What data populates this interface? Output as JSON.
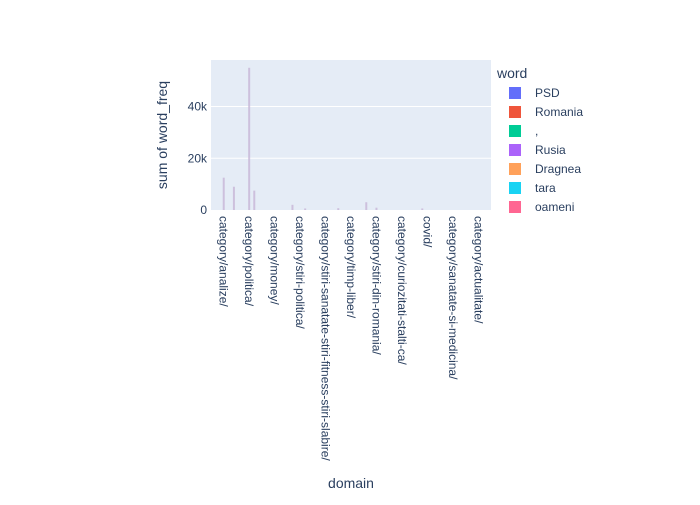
{
  "chart_data": {
    "type": "bar",
    "barmode": "stack",
    "xlabel": "domain",
    "ylabel": "sum of word_freq",
    "ylim": [
      0,
      58000
    ],
    "yticks": [
      0,
      20000,
      40000
    ],
    "ytick_labels": [
      "0",
      "20k",
      "40k"
    ],
    "grid": true,
    "legend_title": "word",
    "legend_position": "right",
    "categories": [
      "category/analize/",
      "category/politica/",
      "category/money/",
      "category/stiri-politica/",
      "category/stiri-sanatate-stiri-fitness-stiri-slabire/",
      "category/timp-liber/",
      "category/stiri-din-romania/",
      "category/curiozitati-stalti-ca/",
      "covid/",
      "category/sanatate-si-medicina/",
      "category/actualitate/"
    ],
    "series": [
      {
        "name": "PSD",
        "color": "#636efa"
      },
      {
        "name": "Romania",
        "color": "#EF553B"
      },
      {
        "name": ",",
        "color": "#00cc96"
      },
      {
        "name": "Rusia",
        "color": "#ab63fa"
      },
      {
        "name": "Dragnea",
        "color": "#FFA15A"
      },
      {
        "name": "tara",
        "color": "#19d3f3"
      },
      {
        "name": "oameni",
        "color": "#FF6692"
      }
    ],
    "domain_totals": [
      {
        "domain_index": 0,
        "value": 12500
      },
      {
        "domain_index": 0.4,
        "value": 9000
      },
      {
        "domain_index": 1,
        "value": 55000
      },
      {
        "domain_index": 1.2,
        "value": 7500
      },
      {
        "domain_index": 2.7,
        "value": 2000
      },
      {
        "domain_index": 3.2,
        "value": 600
      },
      {
        "domain_index": 4.5,
        "value": 700
      },
      {
        "domain_index": 5.6,
        "value": 3000
      },
      {
        "domain_index": 6.0,
        "value": 900
      },
      {
        "domain_index": 7.8,
        "value": 600
      }
    ]
  }
}
